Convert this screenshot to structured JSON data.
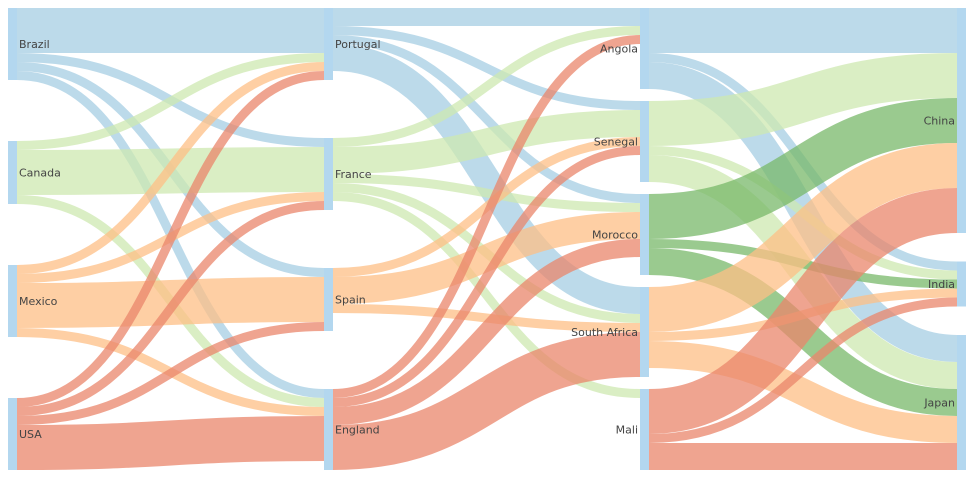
{
  "chart_data": {
    "type": "sankey",
    "colors": {
      "blue": "#a6cee3",
      "lightgreen": "#cde8b0",
      "orange": "#fdbf86",
      "red": "#e9856b",
      "darkgreen": "#78b86a",
      "node": "#b3d7ef"
    },
    "columns": [
      [
        "Brazil",
        "Canada",
        "Mexico",
        "USA"
      ],
      [
        "Portugal",
        "France",
        "Spain",
        "England"
      ],
      [
        "Angola",
        "Senegal",
        "Morocco",
        "South Africa",
        "Mali"
      ],
      [
        "China",
        "India",
        "Japan"
      ]
    ],
    "links": [
      {
        "source": "Brazil",
        "target": "Portugal",
        "value": 5,
        "color": "blue"
      },
      {
        "source": "Brazil",
        "target": "France",
        "value": 1,
        "color": "blue"
      },
      {
        "source": "Brazil",
        "target": "Spain",
        "value": 1,
        "color": "blue"
      },
      {
        "source": "Brazil",
        "target": "England",
        "value": 1,
        "color": "blue"
      },
      {
        "source": "Canada",
        "target": "Portugal",
        "value": 1,
        "color": "lightgreen"
      },
      {
        "source": "Canada",
        "target": "France",
        "value": 5,
        "color": "lightgreen"
      },
      {
        "source": "Canada",
        "target": "England",
        "value": 1,
        "color": "lightgreen"
      },
      {
        "source": "Mexico",
        "target": "Portugal",
        "value": 1,
        "color": "orange"
      },
      {
        "source": "Mexico",
        "target": "France",
        "value": 1,
        "color": "orange"
      },
      {
        "source": "Mexico",
        "target": "Spain",
        "value": 5,
        "color": "orange"
      },
      {
        "source": "Mexico",
        "target": "England",
        "value": 1,
        "color": "orange"
      },
      {
        "source": "USA",
        "target": "Portugal",
        "value": 1,
        "color": "red"
      },
      {
        "source": "USA",
        "target": "France",
        "value": 1,
        "color": "red"
      },
      {
        "source": "USA",
        "target": "Spain",
        "value": 1,
        "color": "red"
      },
      {
        "source": "USA",
        "target": "England",
        "value": 5,
        "color": "red"
      },
      {
        "source": "Portugal",
        "target": "Angola",
        "value": 2,
        "color": "blue"
      },
      {
        "source": "Portugal",
        "target": "Senegal",
        "value": 1,
        "color": "blue"
      },
      {
        "source": "Portugal",
        "target": "Morocco",
        "value": 1,
        "color": "blue"
      },
      {
        "source": "Portugal",
        "target": "South Africa",
        "value": 3,
        "color": "blue"
      },
      {
        "source": "France",
        "target": "Angola",
        "value": 1,
        "color": "lightgreen"
      },
      {
        "source": "France",
        "target": "Senegal",
        "value": 3,
        "color": "lightgreen"
      },
      {
        "source": "France",
        "target": "Morocco",
        "value": 1,
        "color": "lightgreen"
      },
      {
        "source": "France",
        "target": "South Africa",
        "value": 1,
        "color": "lightgreen"
      },
      {
        "source": "France",
        "target": "Mali",
        "value": 1,
        "color": "lightgreen"
      },
      {
        "source": "Spain",
        "target": "Senegal",
        "value": 1,
        "color": "orange"
      },
      {
        "source": "Spain",
        "target": "Morocco",
        "value": 3,
        "color": "orange"
      },
      {
        "source": "Spain",
        "target": "South Africa",
        "value": 1,
        "color": "orange"
      },
      {
        "source": "England",
        "target": "Angola",
        "value": 1,
        "color": "red"
      },
      {
        "source": "England",
        "target": "Senegal",
        "value": 1,
        "color": "red"
      },
      {
        "source": "England",
        "target": "Morocco",
        "value": 2,
        "color": "red"
      },
      {
        "source": "England",
        "target": "South Africa",
        "value": 5,
        "color": "red"
      },
      {
        "source": "Angola",
        "target": "China",
        "value": 5,
        "color": "blue"
      },
      {
        "source": "Angola",
        "target": "India",
        "value": 1,
        "color": "blue"
      },
      {
        "source": "Angola",
        "target": "Japan",
        "value": 3,
        "color": "blue"
      },
      {
        "source": "Senegal",
        "target": "China",
        "value": 5,
        "color": "lightgreen"
      },
      {
        "source": "Senegal",
        "target": "India",
        "value": 1,
        "color": "lightgreen"
      },
      {
        "source": "Senegal",
        "target": "Japan",
        "value": 3,
        "color": "lightgreen"
      },
      {
        "source": "Morocco",
        "target": "China",
        "value": 5,
        "color": "darkgreen"
      },
      {
        "source": "Morocco",
        "target": "India",
        "value": 1,
        "color": "darkgreen"
      },
      {
        "source": "Morocco",
        "target": "Japan",
        "value": 3,
        "color": "darkgreen"
      },
      {
        "source": "South Africa",
        "target": "China",
        "value": 5,
        "color": "orange"
      },
      {
        "source": "South Africa",
        "target": "India",
        "value": 1,
        "color": "orange"
      },
      {
        "source": "South Africa",
        "target": "Japan",
        "value": 3,
        "color": "orange"
      },
      {
        "source": "Mali",
        "target": "China",
        "value": 5,
        "color": "red"
      },
      {
        "source": "Mali",
        "target": "India",
        "value": 1,
        "color": "red"
      },
      {
        "source": "Mali",
        "target": "Japan",
        "value": 3,
        "color": "red"
      }
    ]
  }
}
